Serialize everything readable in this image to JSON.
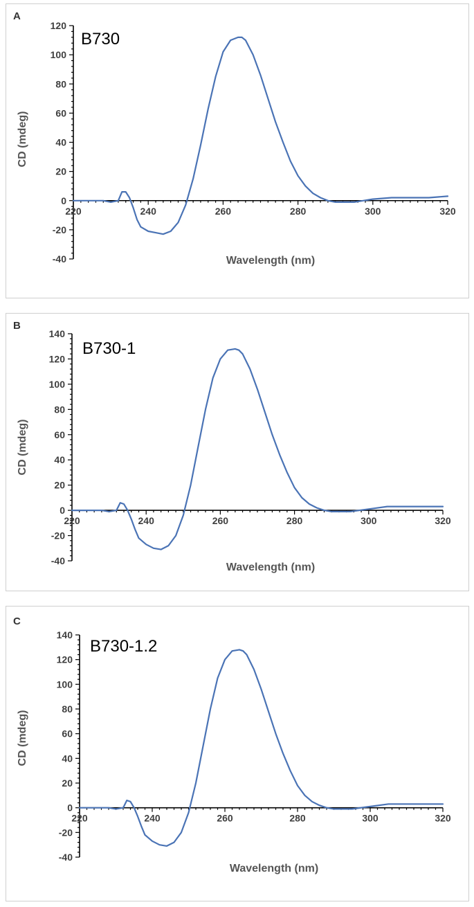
{
  "chart_data": [
    {
      "type": "line",
      "panel_label": "A",
      "title": "B730",
      "xlabel": "Wavelength (nm)",
      "ylabel": "CD (mdeg)",
      "xlim": [
        220,
        320
      ],
      "ylim": [
        -40,
        120
      ],
      "xticks": [
        220,
        240,
        260,
        280,
        300,
        320
      ],
      "yticks": [
        -40,
        -20,
        0,
        20,
        40,
        60,
        80,
        100,
        120
      ],
      "x_tick_labels": [
        "220",
        "240",
        "260",
        "280",
        "300",
        "320"
      ],
      "y_tick_labels": [
        "-40",
        "-20",
        "0",
        "20",
        "40",
        "60",
        "80",
        "100",
        "120"
      ],
      "series_color": "#4a73b5",
      "series": [
        {
          "name": "B730",
          "x": [
            220,
            224,
            228,
            230,
            232,
            233,
            234,
            235,
            236,
            237,
            238,
            240,
            242,
            244,
            246,
            248,
            250,
            252,
            254,
            256,
            258,
            260,
            262,
            264,
            265,
            266,
            268,
            270,
            272,
            274,
            276,
            278,
            280,
            282,
            284,
            286,
            288,
            290,
            292,
            295,
            300,
            305,
            310,
            315,
            320
          ],
          "y": [
            0,
            0,
            0,
            -1,
            0,
            6,
            6,
            2,
            -5,
            -13,
            -18,
            -21,
            -22,
            -23,
            -21,
            -15,
            -3,
            15,
            38,
            63,
            85,
            102,
            110,
            112,
            112,
            110,
            100,
            86,
            70,
            54,
            40,
            27,
            17,
            10,
            5,
            2,
            0,
            -1,
            -1,
            -1,
            1,
            2,
            2,
            2,
            3
          ]
        }
      ]
    },
    {
      "type": "line",
      "panel_label": "B",
      "title": "B730-1",
      "xlabel": "Wavelength (nm)",
      "ylabel": "CD (mdeg)",
      "xlim": [
        220,
        320
      ],
      "ylim": [
        -40,
        140
      ],
      "xticks": [
        220,
        240,
        260,
        280,
        300,
        320
      ],
      "yticks": [
        -40,
        -20,
        0,
        20,
        40,
        60,
        80,
        100,
        120,
        140
      ],
      "x_tick_labels": [
        "220",
        "240",
        "260",
        "280",
        "300",
        "320"
      ],
      "y_tick_labels": [
        "-40",
        "-20",
        "0",
        "20",
        "40",
        "60",
        "80",
        "100",
        "120",
        "140"
      ],
      "series_color": "#4a73b5",
      "series": [
        {
          "name": "B730-1",
          "x": [
            220,
            224,
            228,
            230,
            232,
            233,
            234,
            235,
            236,
            237,
            238,
            240,
            242,
            244,
            246,
            248,
            250,
            252,
            254,
            256,
            258,
            260,
            262,
            264,
            265,
            266,
            268,
            270,
            272,
            274,
            276,
            278,
            280,
            282,
            284,
            286,
            288,
            290,
            292,
            295,
            300,
            305,
            310,
            315,
            320
          ],
          "y": [
            0,
            0,
            0,
            -1,
            0,
            6,
            5,
            0,
            -7,
            -15,
            -22,
            -27,
            -30,
            -31,
            -28,
            -20,
            -4,
            20,
            50,
            80,
            105,
            120,
            127,
            128,
            127,
            124,
            112,
            96,
            78,
            60,
            44,
            30,
            18,
            10,
            5,
            2,
            0,
            -1,
            -1,
            -1,
            1,
            3,
            3,
            3,
            3
          ]
        }
      ]
    },
    {
      "type": "line",
      "panel_label": "C",
      "title": "B730-1.2",
      "xlabel": "Wavelength (nm)",
      "ylabel": "CD (mdeg)",
      "xlim": [
        220,
        320
      ],
      "ylim": [
        -40,
        140
      ],
      "xticks": [
        220,
        240,
        260,
        280,
        300,
        320
      ],
      "yticks": [
        -40,
        -20,
        0,
        20,
        40,
        60,
        80,
        100,
        120,
        140
      ],
      "x_tick_labels": [
        "220",
        "240",
        "260",
        "280",
        "300",
        "320"
      ],
      "y_tick_labels": [
        "-40",
        "-20",
        "0",
        "20",
        "40",
        "60",
        "80",
        "100",
        "120",
        "140"
      ],
      "series_color": "#4a73b5",
      "series": [
        {
          "name": "B730-1.2",
          "x": [
            220,
            224,
            228,
            230,
            232,
            233,
            234,
            235,
            236,
            237,
            238,
            240,
            242,
            244,
            246,
            248,
            250,
            252,
            254,
            256,
            258,
            260,
            262,
            264,
            265,
            266,
            268,
            270,
            272,
            274,
            276,
            278,
            280,
            282,
            284,
            286,
            288,
            290,
            292,
            295,
            300,
            305,
            310,
            315,
            320
          ],
          "y": [
            0,
            0,
            0,
            -1,
            0,
            6,
            5,
            0,
            -7,
            -15,
            -22,
            -27,
            -30,
            -31,
            -28,
            -20,
            -4,
            20,
            50,
            80,
            105,
            120,
            127,
            128,
            127,
            124,
            112,
            96,
            78,
            60,
            44,
            30,
            18,
            10,
            5,
            2,
            0,
            -1,
            -1,
            -1,
            1,
            3,
            3,
            3,
            3
          ]
        }
      ]
    }
  ]
}
